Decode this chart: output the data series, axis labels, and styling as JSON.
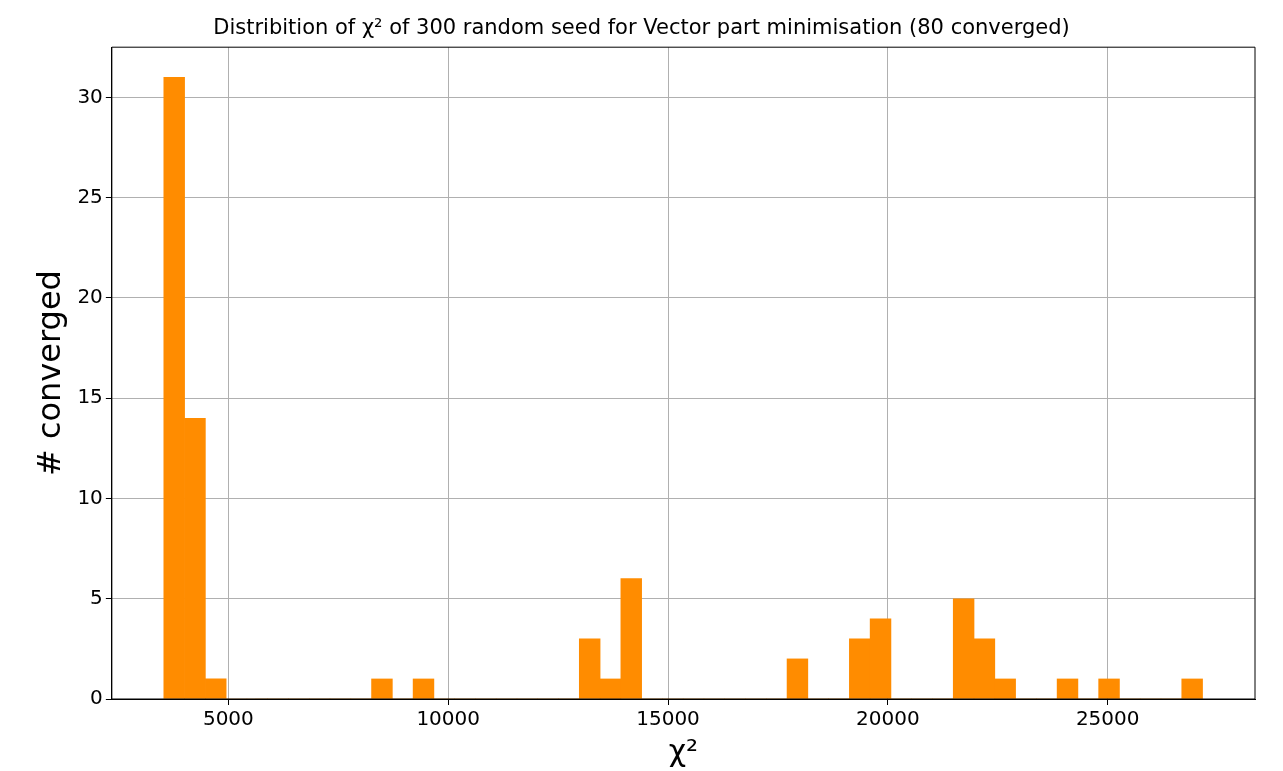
{
  "chart_data": {
    "type": "histogram",
    "title": "Distribition of χ² of 300 random seed for Vector part minimisation (80 converged)",
    "xlabel": "χ²",
    "ylabel": "# converged",
    "bins": [
      3532,
      4004.5,
      4477,
      4949.5,
      5422,
      5894.5,
      6367,
      6839.5,
      7312,
      7784.5,
      8257,
      8729.5,
      9202,
      9674.5,
      10147,
      10619.5,
      11092,
      11564.5,
      12037,
      12509.5,
      12982,
      13454.5,
      13927,
      14399.5,
      14872,
      15344.5,
      15817,
      16289.5,
      16762,
      17234.5,
      17707,
      18179.5,
      18652,
      19124.5,
      19597,
      20069.5,
      20542,
      21014.5,
      21487,
      21959.5,
      22432,
      22904.5,
      23377,
      23849.5,
      24322,
      24794.5,
      25267,
      25739.5,
      26212,
      26684.5,
      27157
    ],
    "values": [
      31,
      14,
      1,
      0,
      0,
      0,
      0,
      0,
      0,
      0,
      1,
      0,
      1,
      0,
      0,
      0,
      0,
      0,
      0,
      0,
      3,
      1,
      6,
      0,
      0,
      0,
      0,
      0,
      0,
      0,
      2,
      0,
      0,
      3,
      4,
      0,
      0,
      0,
      5,
      3,
      1,
      0,
      0,
      1,
      0,
      1,
      0,
      0,
      0,
      1
    ],
    "color": "#ff8c00",
    "xlim": [
      2350,
      28350
    ],
    "xticks": [
      5000,
      10000,
      15000,
      20000,
      25000
    ],
    "ylim": [
      0,
      32.5
    ],
    "yticks": [
      0,
      5,
      10,
      15,
      20,
      25,
      30
    ],
    "grid": true
  }
}
